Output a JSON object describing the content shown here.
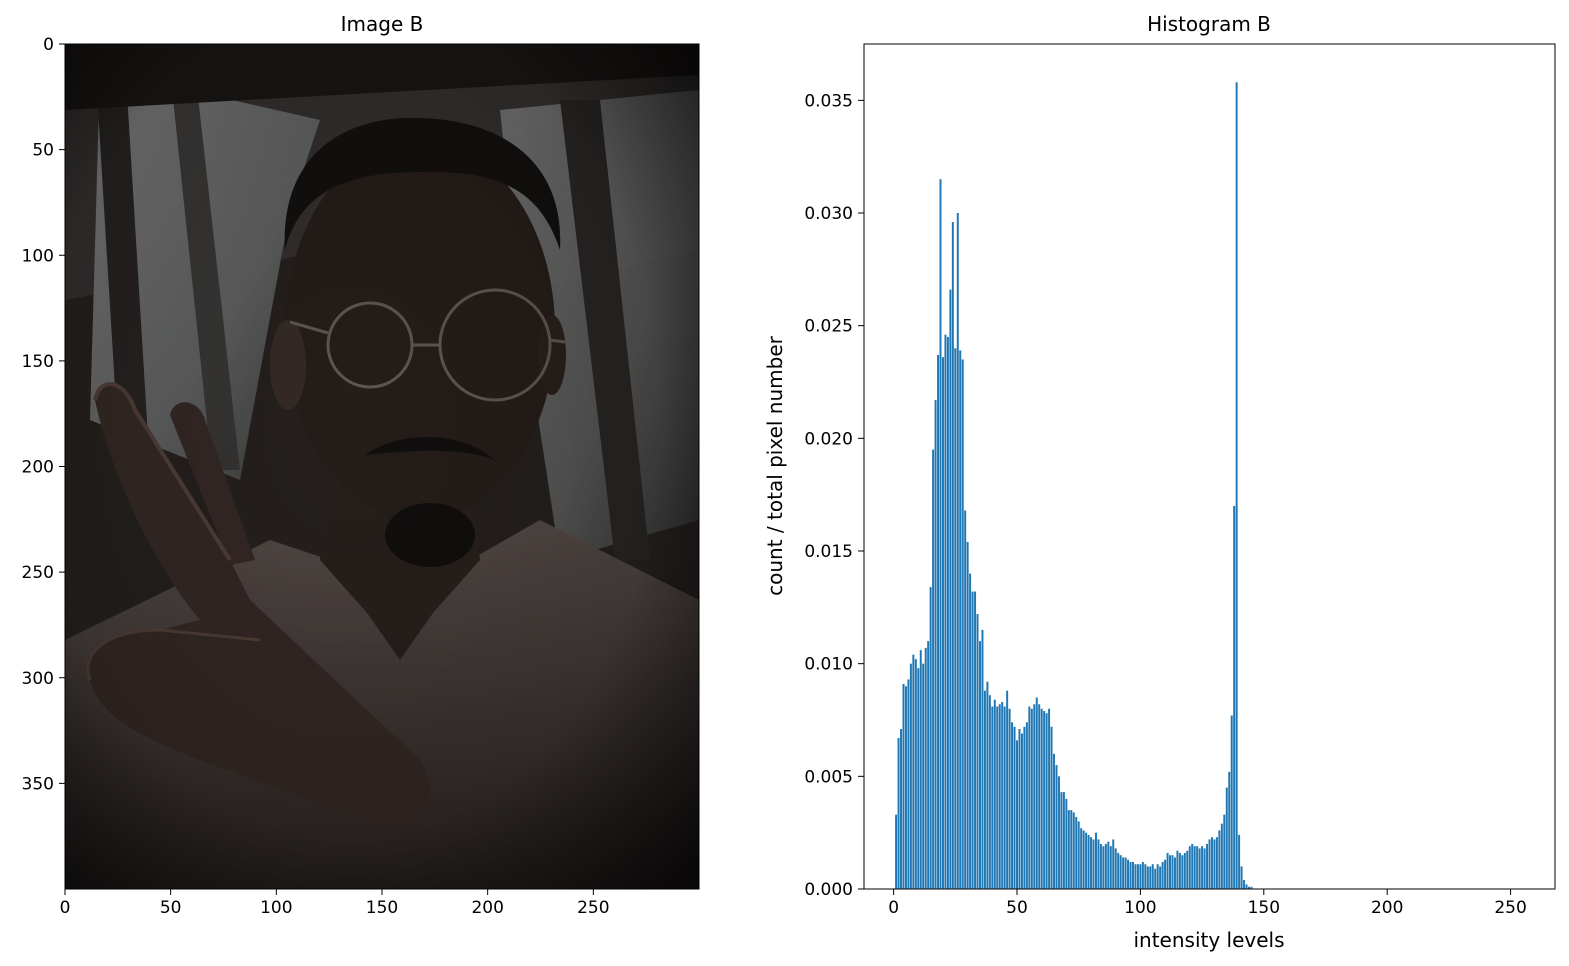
{
  "chart_data": [
    {
      "type": "image",
      "title": "Image B",
      "xlim": [
        0,
        300
      ],
      "ylim": [
        400,
        0
      ],
      "xticks": [
        0,
        50,
        100,
        150,
        200,
        250
      ],
      "yticks": [
        0,
        50,
        100,
        150,
        200,
        250,
        300,
        350
      ],
      "grid": false,
      "content": "dark photo of a man with round glasses and a white t-shirt making a peace sign in front of a window"
    },
    {
      "type": "bar",
      "title": "Histogram B",
      "xlabel": "intensity levels",
      "ylabel": "count / total pixel number",
      "xlim": [
        -12,
        268
      ],
      "ylim": [
        0,
        0.0375
      ],
      "xticks": [
        0,
        50,
        100,
        150,
        200,
        250
      ],
      "yticks": [
        "0.000",
        "0.005",
        "0.010",
        "0.015",
        "0.020",
        "0.025",
        "0.030",
        "0.035"
      ],
      "grid": false,
      "color": "#1f77b4",
      "x_start": 0,
      "values": [
        0,
        0.0033,
        0.0067,
        0.0071,
        0.0091,
        0.009,
        0.0093,
        0.01,
        0.0104,
        0.0102,
        0.0098,
        0.0106,
        0.01,
        0.0107,
        0.011,
        0.0134,
        0.0195,
        0.0217,
        0.0237,
        0.0315,
        0.0236,
        0.0246,
        0.0245,
        0.0266,
        0.0296,
        0.024,
        0.03,
        0.0239,
        0.0235,
        0.0168,
        0.0154,
        0.014,
        0.0132,
        0.0132,
        0.0122,
        0.011,
        0.0115,
        0.0088,
        0.0092,
        0.0086,
        0.0081,
        0.0084,
        0.0081,
        0.0082,
        0.0083,
        0.0081,
        0.0088,
        0.008,
        0.0074,
        0.0072,
        0.0066,
        0.0071,
        0.0069,
        0.0072,
        0.0074,
        0.0081,
        0.008,
        0.0082,
        0.0085,
        0.0082,
        0.008,
        0.0079,
        0.0078,
        0.008,
        0.0072,
        0.006,
        0.0055,
        0.005,
        0.0043,
        0.0043,
        0.004,
        0.0035,
        0.0035,
        0.0034,
        0.0032,
        0.003,
        0.0027,
        0.0026,
        0.0025,
        0.0024,
        0.0023,
        0.0022,
        0.0025,
        0.0022,
        0.002,
        0.0019,
        0.002,
        0.0021,
        0.0019,
        0.0022,
        0.0018,
        0.0016,
        0.0015,
        0.0014,
        0.0014,
        0.0013,
        0.0012,
        0.0012,
        0.0011,
        0.0011,
        0.0011,
        0.0012,
        0.0011,
        0.001,
        0.001,
        0.0011,
        0.0009,
        0.0011,
        0.001,
        0.0012,
        0.0013,
        0.0016,
        0.0015,
        0.0015,
        0.0014,
        0.0017,
        0.0016,
        0.0015,
        0.0016,
        0.0017,
        0.0019,
        0.002,
        0.0019,
        0.0019,
        0.0018,
        0.0019,
        0.0018,
        0.002,
        0.0022,
        0.0023,
        0.0022,
        0.0023,
        0.0026,
        0.0029,
        0.0033,
        0.0045,
        0.0052,
        0.0077,
        0.017,
        0.0358,
        0.0024,
        0.001,
        0.0004,
        0.0002,
        0.0001,
        0.0001
      ]
    }
  ]
}
